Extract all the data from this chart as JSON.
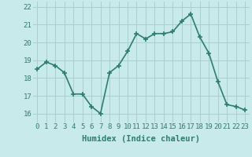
{
  "x": [
    0,
    1,
    2,
    3,
    4,
    5,
    6,
    7,
    8,
    9,
    10,
    11,
    12,
    13,
    14,
    15,
    16,
    17,
    18,
    19,
    20,
    21,
    22,
    23
  ],
  "y": [
    18.5,
    18.9,
    18.7,
    18.3,
    17.1,
    17.1,
    16.4,
    16.0,
    18.3,
    18.7,
    19.5,
    20.5,
    20.2,
    20.5,
    20.5,
    20.6,
    21.2,
    21.6,
    20.3,
    19.4,
    17.8,
    16.5,
    16.4,
    16.2
  ],
  "line_color": "#2e7d6e",
  "marker": "+",
  "marker_size": 4,
  "bg_color": "#c8eaea",
  "grid_color": "#aacfcf",
  "xlabel": "Humidex (Indice chaleur)",
  "ylim": [
    15.5,
    22.3
  ],
  "xlim": [
    -0.5,
    23.5
  ],
  "yticks": [
    16,
    17,
    18,
    19,
    20,
    21,
    22
  ],
  "xticks": [
    0,
    1,
    2,
    3,
    4,
    5,
    6,
    7,
    8,
    9,
    10,
    11,
    12,
    13,
    14,
    15,
    16,
    17,
    18,
    19,
    20,
    21,
    22,
    23
  ],
  "xlabel_fontsize": 7.5,
  "tick_fontsize": 6.5,
  "line_width": 1.2,
  "marker_linewidth": 1.2
}
